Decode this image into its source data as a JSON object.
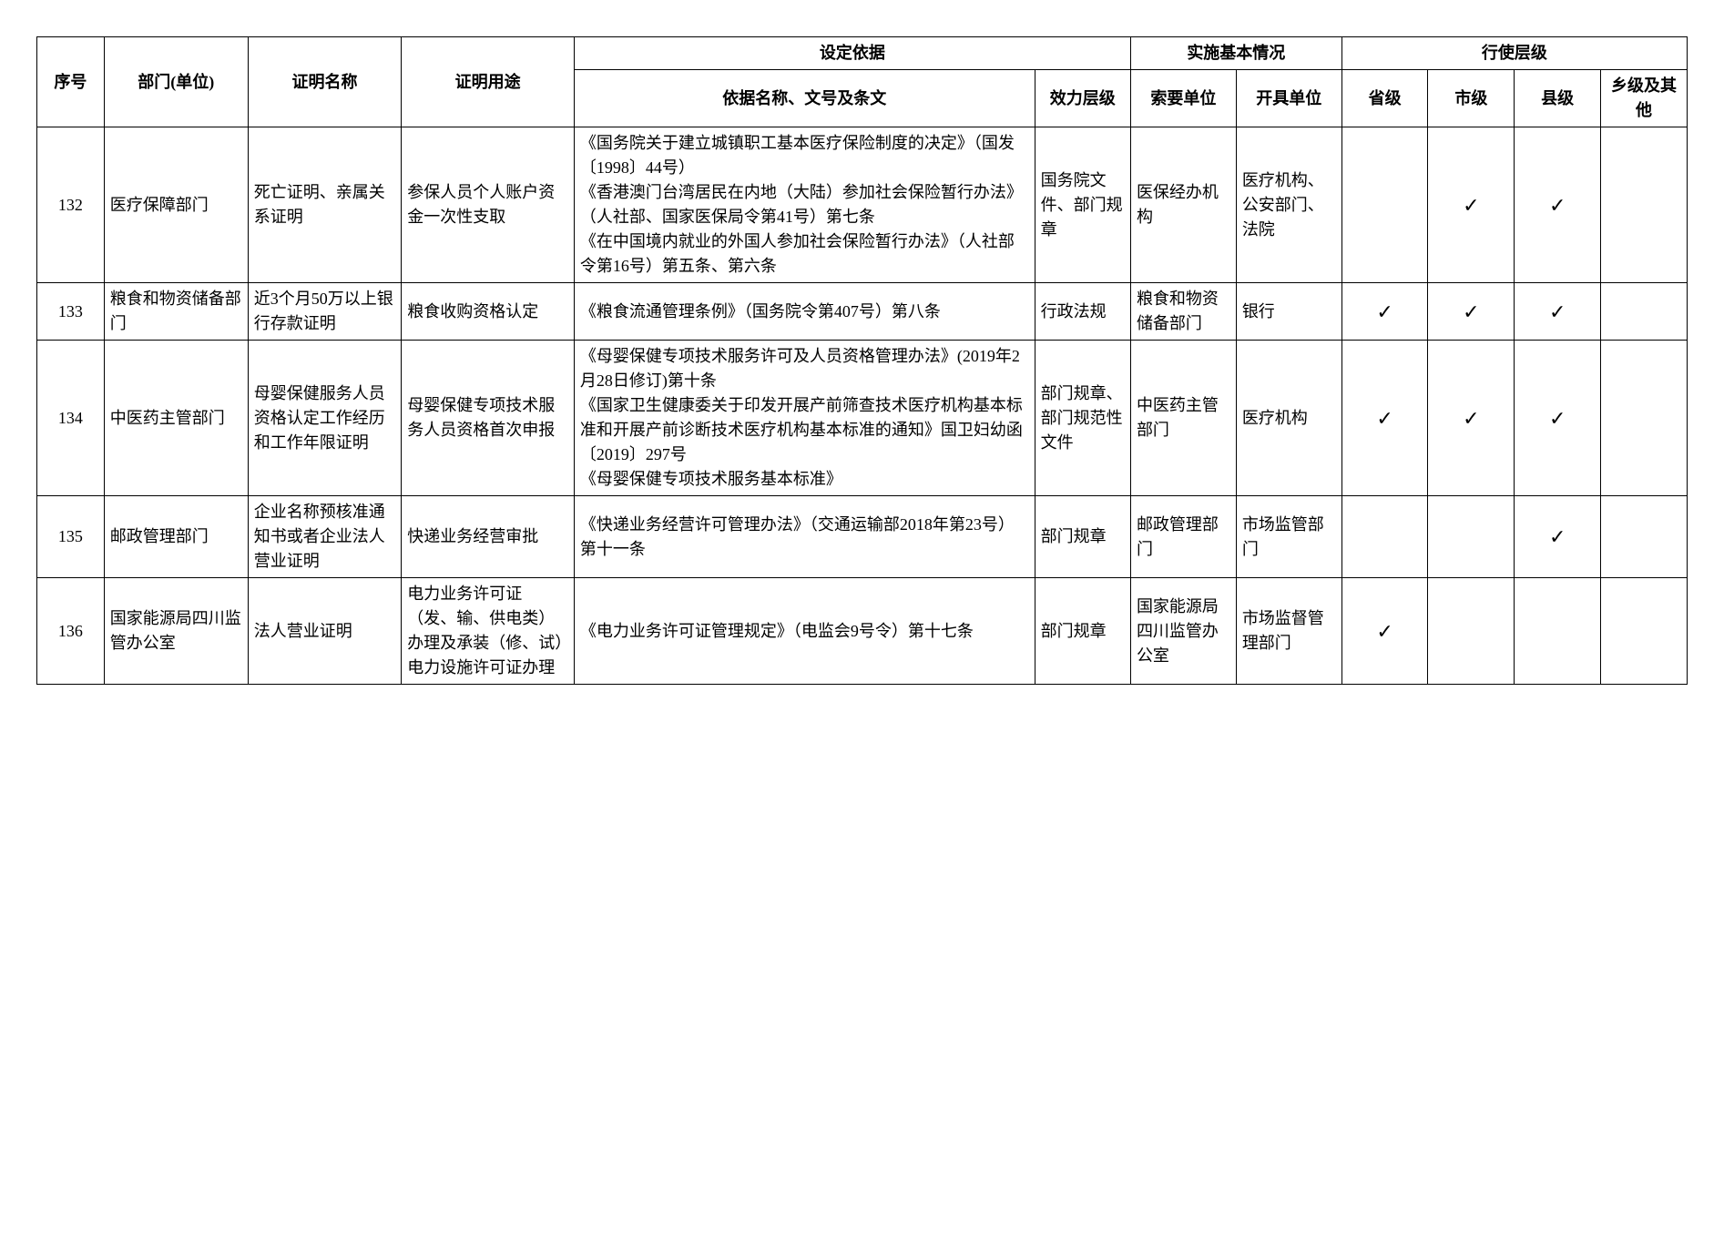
{
  "headers": {
    "seq": "序号",
    "dept": "部门(单位)",
    "cert": "证明名称",
    "use": "证明用途",
    "basis_group": "设定依据",
    "basis_name": "依据名称、文号及条文",
    "eff": "效力层级",
    "impl_group": "实施基本情况",
    "req": "索要单位",
    "iss": "开具单位",
    "level_group": "行使层级",
    "prov": "省级",
    "city": "市级",
    "county": "县级",
    "town": "乡级及其他"
  },
  "checkmark": "✓",
  "rows": [
    {
      "seq": "132",
      "dept": "医疗保障部门",
      "cert": "死亡证明、亲属关系证明",
      "use": "参保人员个人账户资金一次性支取",
      "basis": "《国务院关于建立城镇职工基本医疗保险制度的决定》（国发〔1998〕44号）\n《香港澳门台湾居民在内地（大陆）参加社会保险暂行办法》（人社部、国家医保局令第41号）第七条\n《在中国境内就业的外国人参加社会保险暂行办法》（人社部令第16号）第五条、第六条",
      "eff": "国务院文件、部门规章",
      "req": "医保经办机构",
      "iss": "医疗机构、公安部门、法院",
      "prov": "",
      "city": "✓",
      "county": "✓",
      "town": ""
    },
    {
      "seq": "133",
      "dept": "粮食和物资储备部门",
      "cert": "近3个月50万以上银行存款证明",
      "use": "粮食收购资格认定",
      "basis": "《粮食流通管理条例》（国务院令第407号）第八条",
      "eff": "行政法规",
      "req": "粮食和物资储备部门",
      "iss": "银行",
      "prov": "✓",
      "city": "✓",
      "county": "✓",
      "town": ""
    },
    {
      "seq": "134",
      "dept": "中医药主管部门",
      "cert": "母婴保健服务人员资格认定工作经历和工作年限证明",
      "use": "母婴保健专项技术服务人员资格首次申报",
      "basis": "《母婴保健专项技术服务许可及人员资格管理办法》(2019年2月28日修订)第十条\n《国家卫生健康委关于印发开展产前筛查技术医疗机构基本标准和开展产前诊断技术医疗机构基本标准的通知》国卫妇幼函〔2019〕297号\n《母婴保健专项技术服务基本标准》",
      "eff": "部门规章、部门规范性文件",
      "req": "中医药主管部门",
      "iss": "医疗机构",
      "prov": "✓",
      "city": "✓",
      "county": "✓",
      "town": ""
    },
    {
      "seq": "135",
      "dept": "邮政管理部门",
      "cert": "企业名称预核准通知书或者企业法人营业证明",
      "use": "快递业务经营审批",
      "basis": "《快递业务经营许可管理办法》（交通运输部2018年第23号）第十一条",
      "eff": "部门规章",
      "req": "邮政管理部门",
      "iss": "市场监管部门",
      "prov": "",
      "city": "",
      "county": "✓",
      "town": ""
    },
    {
      "seq": "136",
      "dept": "国家能源局四川监管办公室",
      "cert": "法人营业证明",
      "use": "电力业务许可证（发、输、供电类）办理及承装（修、试）电力设施许可证办理",
      "basis": "《电力业务许可证管理规定》（电监会9号令）第十七条",
      "eff": "部门规章",
      "req": "国家能源局四川监管办公室",
      "iss": "市场监督管理部门",
      "prov": "✓",
      "city": "",
      "county": "",
      "town": ""
    }
  ]
}
